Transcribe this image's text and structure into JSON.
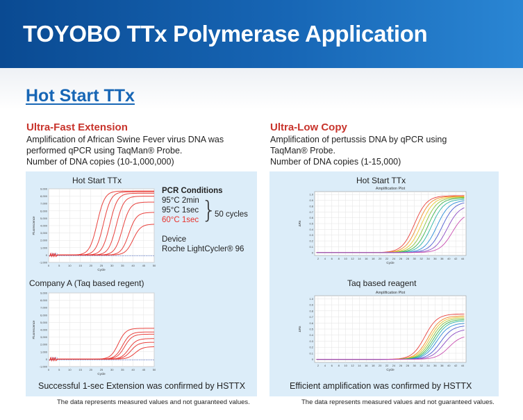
{
  "header": {
    "title": "TOYOBO TTx  Polymerase Application"
  },
  "section": {
    "title": "Hot Start TTx"
  },
  "left": {
    "title": "Ultra-Fast Extension",
    "desc1": "Amplification of African Swine Fever virus DNA was",
    "desc2": "performed qPCR using TaqMan® Probe.",
    "desc3": "Number of DNA copies (10-1,000,000)",
    "chart1_label": "Hot Start TTx",
    "chart2_label": "Company A (Taq based regent)",
    "pcr_title": "PCR Conditions",
    "pcr_step1": "95°C  2min",
    "pcr_step2": "95°C  1sec",
    "pcr_step3": "60°C  1sec",
    "pcr_cycles": "50 cycles",
    "device_label": "Device",
    "device_name": "Roche LightCycler® 96",
    "conclusion": "Successful 1-sec Extension was confirmed by HSTTX",
    "note": "The data represents measured values and not guaranteed values."
  },
  "right": {
    "title": "Ultra-Low Copy",
    "desc1": "Amplification of pertussis DNA by qPCR using",
    "desc2": "TaqMan® Probe.",
    "desc3": "Number of DNA copies (1-15,000)",
    "chart1_label": "Hot Start TTx",
    "chart2_label": "Taq based reagent",
    "conclusion": "Efficient amplification was confirmed by HSTTX",
    "note": "The data represents measured values and not guaranteed values."
  },
  "colors": {
    "banner": "#0a4a92",
    "accent_red": "#c8342c",
    "link_blue": "#1766b5",
    "panel": "#dcedf9"
  },
  "chart_data": [
    {
      "type": "line",
      "subtitle": "Hot Start TTx",
      "xlabel": "Cycle",
      "ylabel": "Fluorescence",
      "x_ticks": [
        "0",
        "5",
        "10",
        "15",
        "20",
        "25",
        "30",
        "35",
        "40",
        "45",
        "50"
      ],
      "y_ticks": [
        "-1,000",
        "0",
        "1,000",
        "2,000",
        "3,000",
        "4,000",
        "5,000",
        "6,000",
        "7,000",
        "8,000",
        "9,000"
      ],
      "threshold_label": "Cq(1)",
      "xlim": [
        0,
        50
      ],
      "ylim": [
        -1000,
        9000
      ],
      "series": [
        {
          "midpoint": 23,
          "plateau": 8700
        },
        {
          "midpoint": 26,
          "plateau": 8600
        },
        {
          "midpoint": 29,
          "plateau": 8400
        },
        {
          "midpoint": 32,
          "plateau": 8000
        },
        {
          "midpoint": 35,
          "plateau": 7200
        },
        {
          "midpoint": 38,
          "plateau": 5800
        },
        {
          "midpoint": 40,
          "plateau": 4200
        }
      ]
    },
    {
      "type": "line",
      "subtitle": "Company A (Taq based regent)",
      "xlabel": "Cycle",
      "ylabel": "Fluorescence",
      "x_ticks": [
        "0",
        "5",
        "10",
        "15",
        "20",
        "25",
        "30",
        "35",
        "40",
        "45",
        "50"
      ],
      "y_ticks": [
        "-1,000",
        "0",
        "1,000",
        "2,000",
        "3,000",
        "4,000",
        "5,000",
        "6,000",
        "7,000",
        "8,000",
        "9,000"
      ],
      "threshold_label": "Cq(1)",
      "xlim": [
        0,
        50
      ],
      "ylim": [
        -1000,
        9000
      ],
      "series": [
        {
          "midpoint": 33,
          "plateau": 4200
        },
        {
          "midpoint": 35,
          "plateau": 3700
        },
        {
          "midpoint": 36,
          "plateau": 3400
        },
        {
          "midpoint": 38,
          "plateau": 2800
        },
        {
          "midpoint": 39,
          "plateau": 2300
        },
        {
          "midpoint": 41,
          "plateau": 1700
        }
      ]
    },
    {
      "type": "line",
      "title": "Amplification Plot",
      "subtitle": "Hot Start TTx",
      "xlabel": "Cycle",
      "ylabel": "ΔRn",
      "x_ticks": [
        "2",
        "4",
        "6",
        "8",
        "10",
        "12",
        "14",
        "16",
        "18",
        "20",
        "22",
        "24",
        "26",
        "28",
        "30",
        "32",
        "34",
        "36",
        "38",
        "40",
        "42",
        "44"
      ],
      "y_ticks": [
        "0",
        "0.1",
        "0.2",
        "0.3",
        "0.4",
        "0.5",
        "0.6",
        "0.7",
        "0.8",
        "0.9",
        "1.0"
      ],
      "xlim": [
        1,
        45
      ],
      "ylim": [
        -0.05,
        1.05
      ],
      "series": [
        {
          "color": "#e8403c",
          "midpoint": 30,
          "plateau": 0.98
        },
        {
          "color": "#f08a2c",
          "midpoint": 31,
          "plateau": 0.97
        },
        {
          "color": "#e8c62c",
          "midpoint": 32,
          "plateau": 0.96
        },
        {
          "color": "#8ac43c",
          "midpoint": 33,
          "plateau": 0.95
        },
        {
          "color": "#3cb44c",
          "midpoint": 34,
          "plateau": 0.94
        },
        {
          "color": "#2cb4a4",
          "midpoint": 35,
          "plateau": 0.92
        },
        {
          "color": "#2c8cd8",
          "midpoint": 36.5,
          "plateau": 0.9
        },
        {
          "color": "#4c5cd0",
          "midpoint": 38,
          "plateau": 0.88
        },
        {
          "color": "#8c4cc4",
          "midpoint": 39.5,
          "plateau": 0.82
        },
        {
          "color": "#c84cb0",
          "midpoint": 41,
          "plateau": 0.7
        }
      ]
    },
    {
      "type": "line",
      "title": "Amplification Plot",
      "subtitle": "Taq based reagent",
      "xlabel": "Cycle",
      "ylabel": "ΔRn",
      "x_ticks": [
        "2",
        "4",
        "6",
        "8",
        "10",
        "12",
        "14",
        "16",
        "18",
        "20",
        "22",
        "24",
        "26",
        "28",
        "30",
        "32",
        "34",
        "36",
        "38",
        "40",
        "42",
        "44"
      ],
      "y_ticks": [
        "0",
        "0.1",
        "0.2",
        "0.3",
        "0.4",
        "0.5",
        "0.6",
        "0.7",
        "0.8",
        "0.9",
        "1.0"
      ],
      "xlim": [
        1,
        45
      ],
      "ylim": [
        -0.05,
        1.05
      ],
      "series": [
        {
          "color": "#e8403c",
          "midpoint": 33,
          "plateau": 0.75
        },
        {
          "color": "#f08a2c",
          "midpoint": 34,
          "plateau": 0.72
        },
        {
          "color": "#e8c62c",
          "midpoint": 34.5,
          "plateau": 0.7
        },
        {
          "color": "#8ac43c",
          "midpoint": 35,
          "plateau": 0.68
        },
        {
          "color": "#3cb44c",
          "midpoint": 35.5,
          "plateau": 0.66
        },
        {
          "color": "#2cb4a4",
          "midpoint": 36,
          "plateau": 0.64
        },
        {
          "color": "#2c8cd8",
          "midpoint": 36.5,
          "plateau": 0.6
        },
        {
          "color": "#4c5cd0",
          "midpoint": 37.5,
          "plateau": 0.56
        },
        {
          "color": "#8c4cc4",
          "midpoint": 38.5,
          "plateau": 0.5
        },
        {
          "color": "#c84cb0",
          "midpoint": 40,
          "plateau": 0.4
        }
      ]
    }
  ]
}
